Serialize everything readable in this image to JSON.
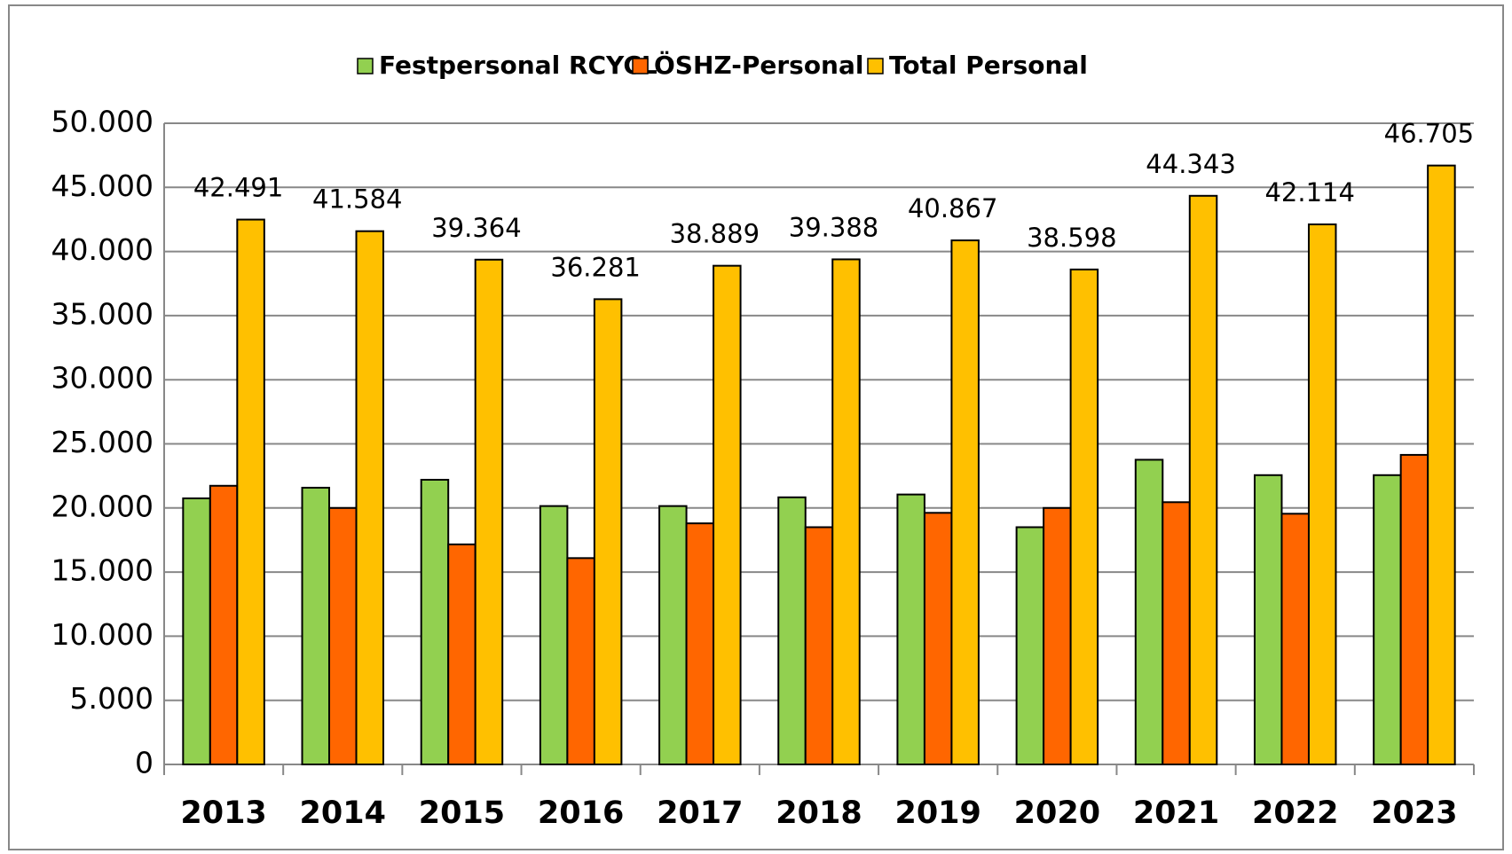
{
  "chart_data": {
    "type": "bar",
    "categories": [
      "2013",
      "2014",
      "2015",
      "2016",
      "2017",
      "2018",
      "2019",
      "2020",
      "2021",
      "2022",
      "2023"
    ],
    "series": [
      {
        "name": "Festpersonal RCYCL",
        "color": "#92d050",
        "values": [
          20750,
          21580,
          22200,
          20150,
          20150,
          20830,
          21050,
          18500,
          23760,
          22560,
          22560
        ]
      },
      {
        "name": "ÖSHZ-Personal",
        "color": "#ff6600",
        "values": [
          21730,
          20000,
          17160,
          16090,
          18800,
          18500,
          19620,
          20000,
          20450,
          19550,
          24140
        ]
      },
      {
        "name": "Total Personal",
        "color": "#ffc000",
        "values": [
          42491,
          41584,
          39364,
          36281,
          38889,
          39388,
          40867,
          38598,
          44343,
          42114,
          46705
        ],
        "value_labels": [
          "42.491",
          "41.584",
          "39.364",
          "36.281",
          "38.889",
          "39.388",
          "40.867",
          "38.598",
          "44.343",
          "42.114",
          "46.705"
        ]
      }
    ],
    "ylim": [
      0,
      50000
    ],
    "yticks": [
      0,
      {
        "value": 5000,
        "label": "5.000"
      },
      {
        "value": 10000,
        "label": "10.000"
      },
      {
        "value": 15000,
        "label": "15.000"
      },
      {
        "value": 20000,
        "label": "20.000"
      },
      {
        "value": 25000,
        "label": "25.000"
      },
      {
        "value": 30000,
        "label": "30.000"
      },
      {
        "value": 35000,
        "label": "35.000"
      },
      {
        "value": 40000,
        "label": "40.000"
      },
      {
        "value": 45000,
        "label": "45.000"
      },
      {
        "value": 50000,
        "label": "50.000"
      }
    ],
    "grid": true,
    "legend": "top"
  }
}
